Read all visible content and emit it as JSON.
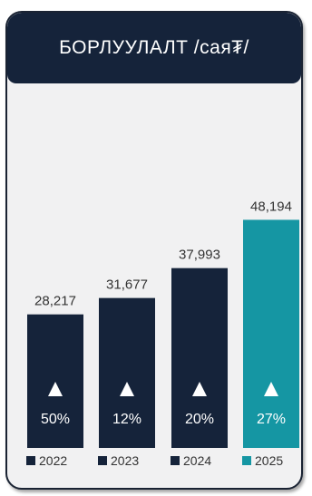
{
  "header": {
    "title": "БОРЛУУЛАЛТ /сая₮/"
  },
  "colors": {
    "dark": "#15233a",
    "accent": "#1596a3",
    "background": "#f1f1f2"
  },
  "chart_data": {
    "type": "bar",
    "title": "БОРЛУУЛАЛТ /сая₮/",
    "categories": [
      "2022",
      "2023",
      "2024",
      "2025"
    ],
    "values": [
      28217,
      31677,
      37993,
      48194
    ],
    "value_labels": [
      "28,217",
      "31,677",
      "37,993",
      "48,194"
    ],
    "growth_labels": [
      "50%",
      "12%",
      "20%",
      "27%"
    ],
    "growth_icon": "up-triangle-icon",
    "highlight_category": "2025",
    "ylim": [
      0,
      50000
    ],
    "legend_position": "bottom",
    "grid": false
  }
}
